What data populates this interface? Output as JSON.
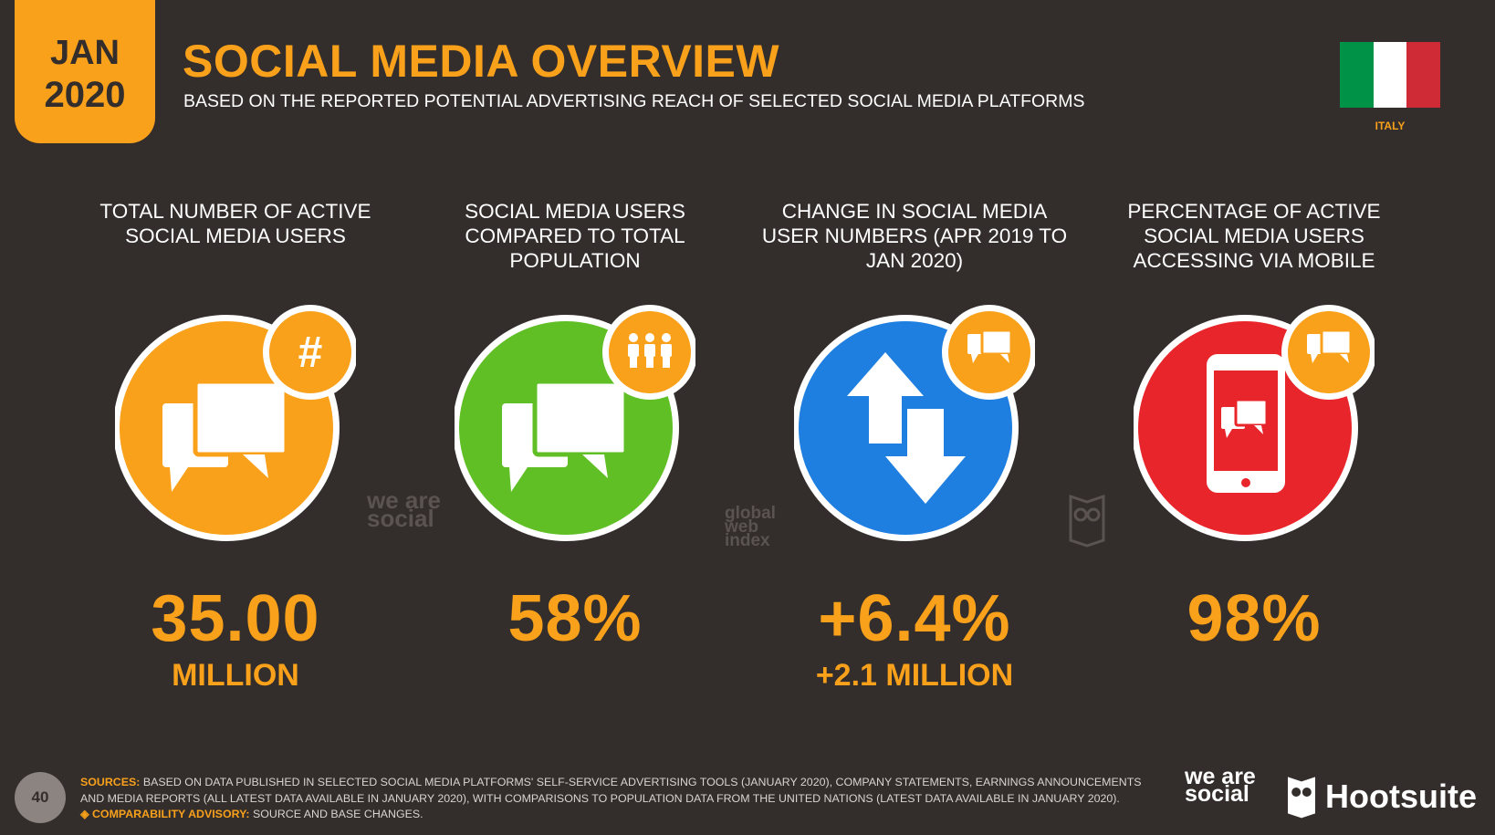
{
  "header": {
    "month": "JAN",
    "year": "2020",
    "title": "SOCIAL MEDIA OVERVIEW",
    "subtitle": "BASED ON THE REPORTED POTENTIAL ADVERTISING REACH OF SELECTED SOCIAL MEDIA PLATFORMS",
    "country": "ITALY",
    "flag_colors": [
      "#009246",
      "#ffffff",
      "#ce2b37"
    ]
  },
  "colors": {
    "background": "#332d2b",
    "accent": "#f9a11b",
    "green": "#5fbf25",
    "blue": "#1f7fe0",
    "red": "#e8252a"
  },
  "stats": [
    {
      "label": "TOTAL NUMBER OF ACTIVE SOCIAL MEDIA USERS",
      "value": "35.00",
      "sub": "MILLION",
      "icon": "hashtag-icon"
    },
    {
      "label": "SOCIAL MEDIA USERS COMPARED TO TOTAL POPULATION",
      "value": "58%",
      "sub": "",
      "icon": "people-icon"
    },
    {
      "label": "CHANGE IN SOCIAL MEDIA USER NUMBERS (APR 2019 TO JAN 2020)",
      "value": "+6.4%",
      "sub": "+2.1 MILLION",
      "icon": "speech-bubble-icon"
    },
    {
      "label": "PERCENTAGE OF ACTIVE SOCIAL MEDIA USERS ACCESSING VIA MOBILE",
      "value": "98%",
      "sub": "",
      "icon": "speech-bubble-icon"
    }
  ],
  "watermarks": {
    "we_are_social": "we are social",
    "gwi": "global web index"
  },
  "footer": {
    "page_number": "40",
    "sources_label": "SOURCES:",
    "sources_text": "BASED ON DATA PUBLISHED IN SELECTED SOCIAL MEDIA PLATFORMS' SELF-SERVICE ADVERTISING TOOLS (JANUARY 2020), COMPANY STATEMENTS, EARNINGS ANNOUNCEMENTS AND MEDIA REPORTS (ALL LATEST DATA AVAILABLE IN JANUARY 2020), WITH COMPARISONS TO POPULATION DATA FROM THE UNITED NATIONS (LATEST DATA AVAILABLE IN JANUARY 2020).",
    "advisory_label": "COMPARABILITY ADVISORY:",
    "advisory_text": "SOURCE AND BASE CHANGES.",
    "logo_we_are_social": "we are social",
    "logo_hootsuite": "Hootsuite"
  }
}
